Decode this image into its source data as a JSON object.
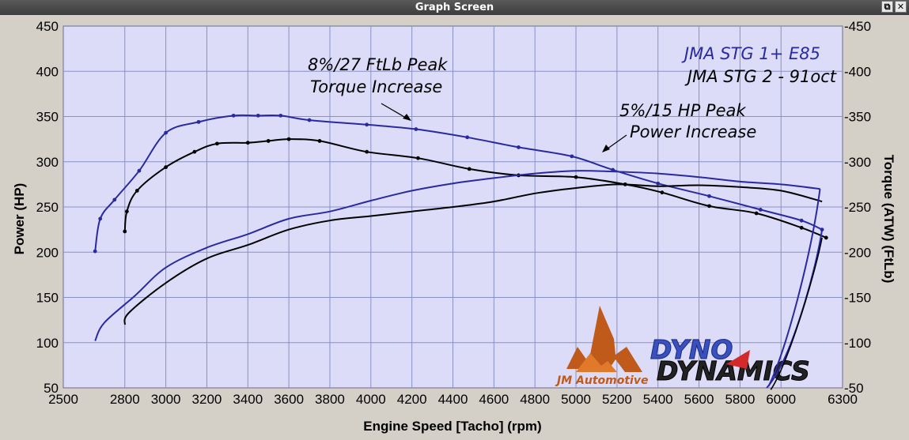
{
  "window": {
    "title": "Graph Screen",
    "restore_glyph": "⧉",
    "close_glyph": "✕"
  },
  "chart_data": {
    "type": "line",
    "x": {
      "label": "Engine Speed [Tacho] (rpm)",
      "min": 2500,
      "max": 6300,
      "ticks": [
        2500,
        2800,
        3000,
        3200,
        3400,
        3600,
        3800,
        4000,
        4200,
        4400,
        4600,
        4800,
        5000,
        5200,
        5400,
        5600,
        5800,
        6000,
        6300
      ]
    },
    "y_left": {
      "label": "Power (HP)",
      "min": 50,
      "max": 450,
      "ticks": [
        50,
        100,
        150,
        200,
        250,
        300,
        350,
        400,
        450
      ]
    },
    "y_right": {
      "label": "Torque (ATW) (FtLb)",
      "min": 50,
      "max": 450,
      "ticks": [
        50,
        100,
        150,
        200,
        250,
        300,
        350,
        400,
        450
      ]
    },
    "grid": true,
    "legend_position": "top-right",
    "colors": {
      "stg1_e85": "#2a2aa0",
      "stg2_91oct": "#000000",
      "plot_bg": "#dcdcf8",
      "grid": "#8890c8"
    },
    "series": [
      {
        "name": "JMA STG 1+ E85",
        "measure": "torque",
        "color": "#2a2aa0",
        "x": [
          2655,
          2680,
          2750,
          2870,
          3000,
          3160,
          3330,
          3450,
          3560,
          3700,
          3980,
          4220,
          4470,
          4720,
          4980,
          5180,
          5400,
          5650,
          5900,
          6100,
          6200
        ],
        "y": [
          201,
          237,
          258,
          290,
          332,
          344,
          351,
          351,
          351,
          346,
          341,
          336,
          327,
          316,
          306,
          291,
          276,
          262,
          247,
          235,
          225
        ]
      },
      {
        "name": "JMA STG 2 - 91oct",
        "measure": "torque",
        "color": "#000000",
        "x": [
          2800,
          2810,
          2860,
          3000,
          3140,
          3250,
          3400,
          3500,
          3600,
          3750,
          3980,
          4230,
          4480,
          4720,
          5000,
          5240,
          5420,
          5650,
          5880,
          6100,
          6220
        ],
        "y": [
          223,
          245,
          268,
          294,
          311,
          320,
          321,
          323,
          325,
          323,
          311,
          304,
          292,
          285,
          283,
          275,
          266,
          251,
          243,
          227,
          216
        ]
      },
      {
        "name": "JMA STG 1+ E85",
        "measure": "power",
        "color": "#2a2aa0",
        "x": [
          2655,
          2700,
          2850,
          3000,
          3200,
          3400,
          3600,
          3800,
          4000,
          4200,
          4400,
          4600,
          4800,
          5000,
          5200,
          5400,
          5600,
          5800,
          6000,
          6190
        ],
        "y": [
          102,
          122,
          152,
          183,
          205,
          220,
          237,
          245,
          257,
          268,
          276,
          282,
          287,
          290,
          289,
          287,
          283,
          278,
          275,
          270
        ]
      },
      {
        "name": "JMA STG 2 - 91oct",
        "measure": "power",
        "color": "#000000",
        "x": [
          2800,
          2820,
          3000,
          3200,
          3400,
          3600,
          3800,
          4000,
          4200,
          4400,
          4600,
          4800,
          5000,
          5200,
          5400,
          5600,
          5800,
          6000,
          6200
        ],
        "y": [
          120,
          133,
          166,
          193,
          208,
          225,
          235,
          240,
          245,
          250,
          256,
          265,
          271,
          275,
          273,
          274,
          272,
          268,
          256
        ]
      }
    ],
    "legend": [
      {
        "label": "JMA STG 1+ E85",
        "color": "#2a2aa0"
      },
      {
        "label": "JMA STG 2 - 91oct",
        "color": "#000000"
      }
    ],
    "annotations": [
      {
        "lines": [
          "8%/27 FtLb Peak",
          "Torque Increase"
        ]
      },
      {
        "lines": [
          "5%/15 HP Peak",
          "Power Increase"
        ]
      }
    ],
    "logos": {
      "left": "JM Automotive",
      "right_top": "DYNO",
      "right_bottom": "DYNAMICS"
    }
  }
}
